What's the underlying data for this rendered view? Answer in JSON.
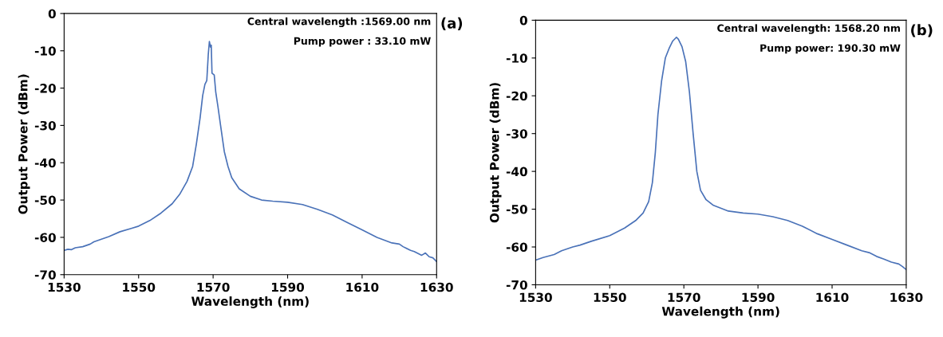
{
  "chart_data": [
    {
      "type": "line",
      "xlabel": "Wavelength (nm)",
      "ylabel": "Output Power (dBm)",
      "xlim": [
        1530,
        1630
      ],
      "xticks": [
        1530,
        1550,
        1570,
        1590,
        1610,
        1630
      ],
      "ylim": [
        -70,
        0
      ],
      "yticks": [
        -70,
        -60,
        -50,
        -40,
        -30,
        -20,
        -10,
        0
      ],
      "grid": false,
      "annotations": [
        "Central wavelength :1569.00 nm",
        "Pump power : 33.10 mW",
        "(a)"
      ],
      "series": [
        {
          "color": "#4a72b8",
          "x": [
            1530,
            1531,
            1532,
            1533,
            1535,
            1537,
            1538,
            1540,
            1542,
            1545,
            1548,
            1550,
            1553,
            1556,
            1559,
            1561,
            1563,
            1564.5,
            1565.5,
            1566.5,
            1567.2,
            1567.8,
            1568.3,
            1568.7,
            1569.0,
            1569.3,
            1569.5,
            1569.7,
            1570.3,
            1570.7,
            1571.3,
            1572,
            1573,
            1574,
            1575,
            1577,
            1580,
            1583,
            1586,
            1590,
            1594,
            1598,
            1602,
            1606,
            1610,
            1614,
            1618,
            1620,
            1621,
            1623,
            1624,
            1626,
            1627,
            1628,
            1629,
            1630
          ],
          "values": [
            -63.5,
            -63.2,
            -63.3,
            -62.8,
            -62.5,
            -61.8,
            -61.2,
            -60.5,
            -59.8,
            -58.5,
            -57.6,
            -57,
            -55.5,
            -53.5,
            -51,
            -48.5,
            -45,
            -41,
            -35,
            -28,
            -22,
            -19,
            -18,
            -11,
            -7.5,
            -9,
            -8.5,
            -16,
            -16.5,
            -21,
            -25,
            -30,
            -37,
            -41,
            -44,
            -47,
            -49,
            -50,
            -50.3,
            -50.6,
            -51.2,
            -52.5,
            -54,
            -56,
            -58,
            -60,
            -61.5,
            -61.8,
            -62.5,
            -63.5,
            -63.8,
            -64.8,
            -64.2,
            -65.2,
            -65.5,
            -66.5
          ]
        }
      ]
    },
    {
      "type": "line",
      "xlabel": "Wavelength (nm)",
      "ylabel": "Output Power (dBm)",
      "xlim": [
        1530,
        1630
      ],
      "xticks": [
        1530,
        1550,
        1570,
        1590,
        1610,
        1630
      ],
      "ylim": [
        -70,
        0
      ],
      "yticks": [
        -70,
        -60,
        -50,
        -40,
        -30,
        -20,
        -10,
        0
      ],
      "grid": false,
      "annotations": [
        "Central wavelength: 1568.20 nm",
        "Pump power: 190.30 mW",
        "(b)"
      ],
      "series": [
        {
          "color": "#4a72b8",
          "x": [
            1530,
            1532,
            1535,
            1537,
            1540,
            1542,
            1545,
            1550,
            1554,
            1557,
            1559,
            1560.5,
            1561.5,
            1562.3,
            1563,
            1564,
            1565,
            1566,
            1567,
            1568,
            1568.5,
            1569.5,
            1570.5,
            1571.5,
            1572.5,
            1573.5,
            1574.5,
            1576,
            1578,
            1582,
            1586,
            1590,
            1594,
            1598,
            1602,
            1606,
            1610,
            1614,
            1618,
            1620,
            1622,
            1624,
            1626,
            1628,
            1629,
            1630
          ],
          "values": [
            -63.5,
            -62.8,
            -62,
            -61,
            -60,
            -59.5,
            -58.5,
            -57,
            -55,
            -53,
            -51,
            -48,
            -43,
            -35,
            -25,
            -16,
            -10,
            -7.5,
            -5.5,
            -4.5,
            -5,
            -7,
            -11,
            -19,
            -30,
            -40,
            -45,
            -47.5,
            -49,
            -50.5,
            -51,
            -51.3,
            -52,
            -53,
            -54.5,
            -56.5,
            -58,
            -59.5,
            -61,
            -61.5,
            -62.5,
            -63.2,
            -64,
            -64.5,
            -65.2,
            -66
          ]
        }
      ]
    }
  ]
}
